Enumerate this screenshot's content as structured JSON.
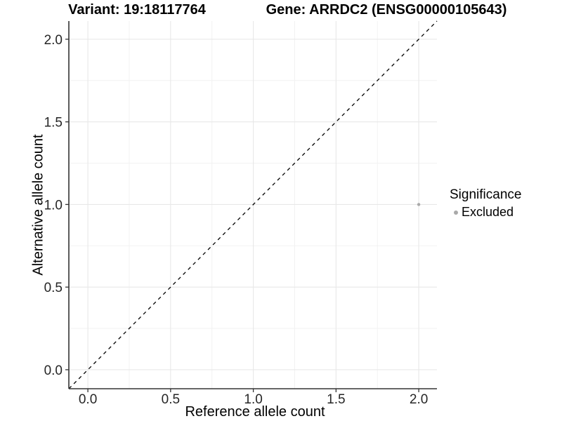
{
  "chart_data": {
    "type": "scatter",
    "titles": {
      "left": "Variant: 19:18117764",
      "right": "Gene: ARRDC2 (ENSG00000105643)"
    },
    "xlabel": "Reference allele count",
    "ylabel": "Alternative allele count",
    "xlim": [
      -0.115,
      2.11
    ],
    "ylim": [
      -0.115,
      2.11
    ],
    "xticks": {
      "values": [
        0,
        0.5,
        1,
        1.5,
        2
      ],
      "labels": [
        "0.0",
        "0.5",
        "1.0",
        "1.5",
        "2.0"
      ]
    },
    "yticks": {
      "values": [
        0,
        0.5,
        1,
        1.5,
        2
      ],
      "labels": [
        "0.0",
        "0.5",
        "1.0",
        "1.5",
        "2.0"
      ]
    },
    "minor_xticks": [
      0.25,
      0.75,
      1.25,
      1.75
    ],
    "minor_yticks": [
      0.25,
      0.75,
      1.25,
      1.75
    ],
    "grid": true,
    "identity_line": {
      "style": "dashed",
      "slope": 1,
      "intercept": 0,
      "color": "#000000"
    },
    "series": [
      {
        "name": "Excluded",
        "color": "#a9a9a9",
        "point_radius": 2.2,
        "points": [
          [
            2.0,
            1.0
          ]
        ]
      }
    ],
    "legend": {
      "title": "Significance",
      "position": "right",
      "items": [
        {
          "label": "Excluded",
          "color": "#a9a9a9"
        }
      ]
    },
    "colors": {
      "background": "#ffffff",
      "axis": "#333333",
      "tick_label": "#262626",
      "grid_major": "#e8e8e8",
      "grid_minor": "#f2f2f2"
    }
  }
}
